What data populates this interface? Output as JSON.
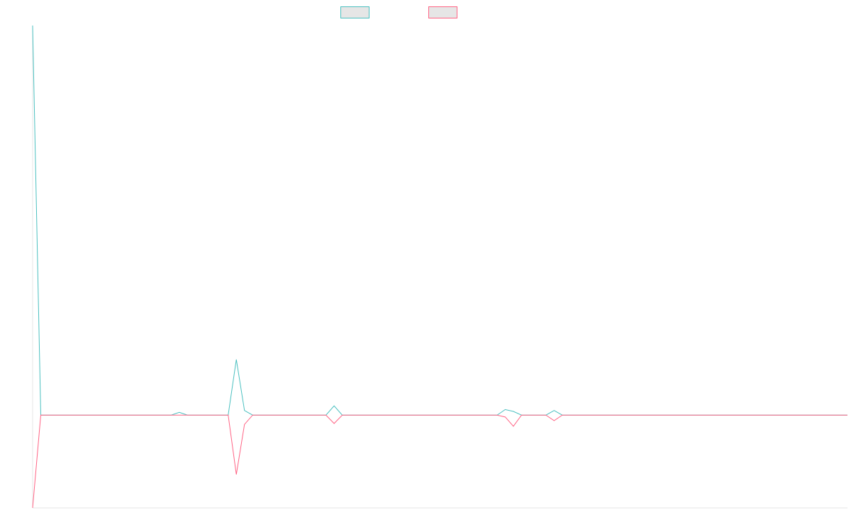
{
  "chart_data": {
    "type": "line",
    "title": "",
    "xlabel": "",
    "ylabel": "",
    "grid": false,
    "legend": "top-center",
    "x": [
      0,
      0.5,
      1,
      1.5,
      2,
      2.5,
      3,
      3.5,
      4,
      4.5,
      5,
      5.5,
      6,
      6.5,
      7,
      7.5,
      8,
      8.5,
      9,
      9.5,
      10,
      10.5,
      11,
      11.5,
      12,
      12.5,
      13,
      13.5,
      14,
      14.5,
      15,
      15.5,
      16,
      16.5,
      17,
      17.5,
      18,
      18.5,
      19,
      19.5,
      20,
      20.5,
      21,
      21.5,
      22,
      22.5,
      23,
      23.5,
      24,
      24.5,
      25,
      25.5,
      26,
      26.5,
      27,
      27.5,
      28,
      28.5,
      29,
      29.5,
      30,
      30.5,
      31,
      31.5,
      32,
      32.5,
      33,
      33.5,
      34,
      34.5,
      35,
      35.5,
      36,
      36.5,
      37,
      37.5,
      38,
      38.5,
      39,
      39.5,
      40,
      40.5,
      41,
      41.5,
      42,
      42.5,
      43,
      43.5,
      44,
      44.5,
      45,
      45.5,
      46,
      46.5,
      47,
      47.5,
      48,
      48.5,
      49,
      49.5,
      50
    ],
    "xlim": [
      0,
      50
    ],
    "ylim": [
      -100,
      420
    ],
    "series": [
      {
        "name": "",
        "color": "#4bc0c0",
        "values": [
          420,
          0,
          0,
          0,
          0,
          0,
          0,
          0,
          0,
          0,
          0,
          0,
          0,
          0,
          0,
          0,
          0,
          0,
          3,
          0,
          0,
          0,
          0,
          0,
          0,
          60,
          5,
          0,
          0,
          0,
          0,
          0,
          0,
          0,
          0,
          0,
          0,
          10,
          0,
          0,
          0,
          0,
          0,
          0,
          0,
          0,
          0,
          0,
          0,
          0,
          0,
          0,
          0,
          0,
          0,
          0,
          0,
          0,
          6,
          4,
          0,
          0,
          0,
          0,
          5,
          0,
          0,
          0,
          0,
          0,
          0,
          0,
          0,
          0,
          0,
          0,
          0,
          0,
          0,
          0,
          0,
          0,
          0,
          0,
          0,
          0,
          0,
          0,
          0,
          0,
          0,
          0,
          0,
          0,
          0,
          0,
          0,
          0,
          0,
          0,
          0
        ]
      },
      {
        "name": "",
        "color": "#ff6384",
        "values": [
          -100,
          0,
          0,
          0,
          0,
          0,
          0,
          0,
          0,
          0,
          0,
          0,
          0,
          0,
          0,
          0,
          0,
          0,
          0,
          0,
          0,
          0,
          0,
          0,
          0,
          -64,
          -10,
          0,
          0,
          0,
          0,
          0,
          0,
          0,
          0,
          0,
          0,
          -9,
          0,
          0,
          0,
          0,
          0,
          0,
          0,
          0,
          0,
          0,
          0,
          0,
          0,
          0,
          0,
          0,
          0,
          0,
          0,
          0,
          -2,
          -12,
          0,
          0,
          0,
          0,
          -6,
          0,
          0,
          0,
          0,
          0,
          0,
          0,
          0,
          0,
          0,
          0,
          0,
          0,
          0,
          0,
          0,
          0,
          0,
          0,
          0,
          0,
          0,
          0,
          0,
          0,
          0,
          0,
          0,
          0,
          0,
          0,
          0,
          0,
          0,
          0,
          0
        ]
      }
    ]
  }
}
